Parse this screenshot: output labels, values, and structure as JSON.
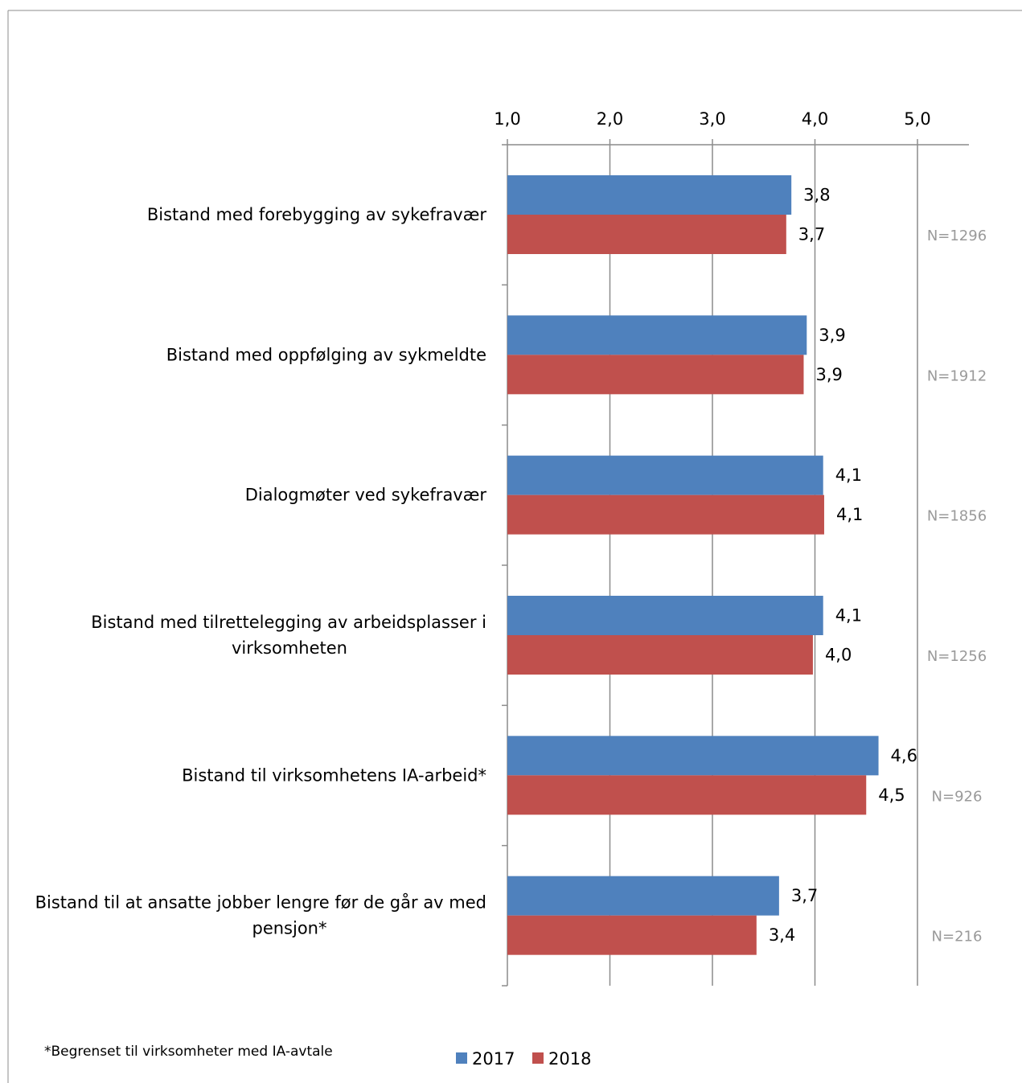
{
  "chart_data": {
    "type": "bar",
    "orientation": "horizontal",
    "categories": [
      [
        "Bistand med forebygging av sykefravær"
      ],
      [
        "Bistand med oppfølging av sykmeldte"
      ],
      [
        "Dialogmøter ved sykefravær"
      ],
      [
        "Bistand med tilrettelegging av arbeidsplasser  i",
        "virksomheten"
      ],
      [
        "Bistand  til virksomhetens IA-arbeid*"
      ],
      [
        "Bistand til at ansatte jobber lengre før de går av med",
        "pensjon*"
      ]
    ],
    "series": [
      {
        "name": "2017",
        "color": "#4f81bd",
        "values": [
          3.77,
          3.92,
          4.08,
          4.08,
          4.62,
          3.65
        ],
        "labels": [
          "3,8",
          "3,9",
          "4,1",
          "4,1",
          "4,6",
          "3,7"
        ]
      },
      {
        "name": "2018",
        "color": "#c0504d",
        "values": [
          3.72,
          3.89,
          4.09,
          3.98,
          4.5,
          3.43
        ],
        "labels": [
          "3,7",
          "3,9",
          "4,1",
          "4,0",
          "4,5",
          "3,4"
        ]
      }
    ],
    "n_labels": [
      "N=1296",
      "N=1912",
      "N=1856",
      "N=1256",
      "N=926",
      "N=216"
    ],
    "xlim": [
      1.0,
      5.0
    ],
    "ticks": [
      1.0,
      2.0,
      3.0,
      4.0,
      5.0
    ],
    "tick_labels": [
      "1,0",
      "2,0",
      "3,0",
      "4,0",
      "5,0"
    ],
    "axis_position": "top",
    "grid": true,
    "legend_placement": "bottom",
    "footnote": "*Begrenset til virksomheter med IA-avtale"
  }
}
